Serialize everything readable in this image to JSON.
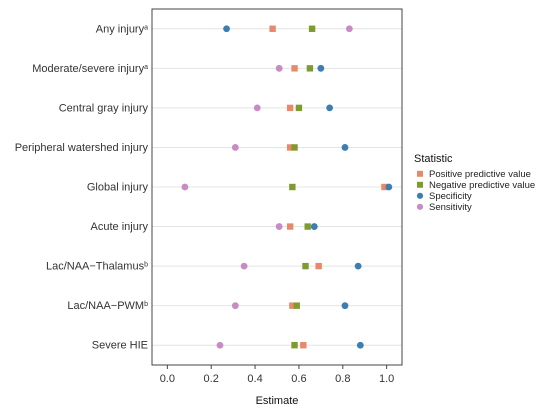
{
  "chart_data": {
    "type": "scatter",
    "xlabel": "Estimate",
    "ylabel": "",
    "xlim": [
      -0.07,
      1.07
    ],
    "xticks": [
      "0.0",
      "0.2",
      "0.4",
      "0.6",
      "0.8",
      "1.0"
    ],
    "grid": true,
    "legend": {
      "title": "Statistic",
      "placement": "right"
    },
    "categories": [
      {
        "label": "Any injury",
        "sup": "a"
      },
      {
        "label": "Moderate/severe injury",
        "sup": "a"
      },
      {
        "label": "Central gray injury",
        "sup": ""
      },
      {
        "label": "Peripheral watershed injury",
        "sup": ""
      },
      {
        "label": "Global injury",
        "sup": ""
      },
      {
        "label": "Acute injury",
        "sup": ""
      },
      {
        "label": "Lac/NAA−Thalamus",
        "sup": "b"
      },
      {
        "label": "Lac/NAA−PWM",
        "sup": "b"
      },
      {
        "label": "Severe HIE",
        "sup": ""
      }
    ],
    "series": [
      {
        "name": "Positive predictive value",
        "color": "#e8896b",
        "marker": "square",
        "values": [
          0.48,
          0.58,
          0.56,
          0.56,
          0.99,
          0.56,
          0.69,
          0.57,
          0.62
        ]
      },
      {
        "name": "Negative predictive value",
        "color": "#7f9b2e",
        "marker": "square",
        "values": [
          0.66,
          0.65,
          0.6,
          0.58,
          0.57,
          0.64,
          0.63,
          0.59,
          0.58
        ]
      },
      {
        "name": "Specificity",
        "color": "#3a7fb0",
        "marker": "circle",
        "values": [
          0.27,
          0.7,
          0.74,
          0.81,
          1.01,
          0.67,
          0.87,
          0.81,
          0.88
        ]
      },
      {
        "name": "Sensitivity",
        "color": "#c88bc4",
        "marker": "circle",
        "values": [
          0.83,
          0.51,
          0.41,
          0.31,
          0.08,
          0.51,
          0.35,
          0.31,
          0.24
        ]
      }
    ]
  }
}
